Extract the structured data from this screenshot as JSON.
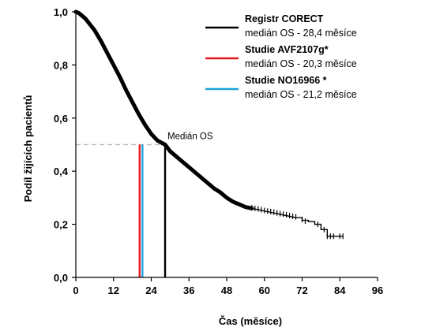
{
  "chart_data": {
    "type": "line",
    "title": "",
    "xlabel": "Čas (měsíce)",
    "ylabel": "Podíl žijících pacientů",
    "xlim": [
      0,
      96
    ],
    "ylim": [
      0,
      1
    ],
    "x_ticks": [
      0,
      12,
      24,
      36,
      48,
      60,
      72,
      84,
      96
    ],
    "y_ticks": [
      0,
      0.2,
      0.4,
      0.6,
      0.8,
      1.0
    ],
    "x_tick_labels": [
      "0",
      "12",
      "24",
      "36",
      "48",
      "60",
      "72",
      "84",
      "96"
    ],
    "y_tick_labels": [
      "0,0",
      "0,2",
      "0,4",
      "0,6",
      "0,8",
      "1,0"
    ],
    "grid": false,
    "legend_position": "top-right",
    "series": [
      {
        "name": "Registr CORECT",
        "subtitle": "medián OS - 28,4 měsíce",
        "color": "#000000",
        "x": [
          0,
          1,
          2,
          3,
          4,
          6,
          8,
          10,
          12,
          14,
          16,
          18,
          20,
          22,
          24,
          26,
          28.4,
          30,
          32,
          34,
          36,
          38,
          40,
          42,
          44,
          46,
          48,
          50,
          52,
          54,
          56,
          58,
          60,
          62,
          64,
          66,
          68,
          70,
          72,
          74,
          76,
          78,
          80,
          82,
          84,
          85
        ],
        "y": [
          1.0,
          0.995,
          0.985,
          0.975,
          0.96,
          0.93,
          0.89,
          0.845,
          0.8,
          0.755,
          0.705,
          0.66,
          0.615,
          0.575,
          0.54,
          0.515,
          0.5,
          0.475,
          0.455,
          0.435,
          0.415,
          0.395,
          0.375,
          0.355,
          0.335,
          0.32,
          0.3,
          0.285,
          0.275,
          0.265,
          0.26,
          0.255,
          0.25,
          0.245,
          0.24,
          0.235,
          0.23,
          0.225,
          0.215,
          0.21,
          0.2,
          0.18,
          0.155,
          0.155,
          0.155,
          0.155
        ]
      },
      {
        "name": "Studie AVF2107g*",
        "subtitle": "medián OS - 20,3 měsíce",
        "color": "#e8141c",
        "median_x": 20.3
      },
      {
        "name": "Studie NO16966 *",
        "subtitle": "medián OS - 21,2 měsíce",
        "color": "#1aa3dc",
        "median_x": 21.2
      }
    ],
    "median_marker": {
      "label": "Medián OS",
      "y": 0.5,
      "x": 28.4,
      "color": "#000000",
      "guide_color": "#bfbfbf"
    },
    "censor_marks": {
      "x": [
        56,
        57,
        58,
        59,
        60,
        61,
        62,
        63,
        64,
        65,
        66,
        67,
        68,
        69,
        70,
        72,
        73,
        77,
        79,
        80,
        81,
        82,
        84,
        85
      ],
      "y": [
        0.262,
        0.26,
        0.258,
        0.255,
        0.252,
        0.25,
        0.248,
        0.246,
        0.243,
        0.24,
        0.238,
        0.236,
        0.233,
        0.23,
        0.228,
        0.218,
        0.212,
        0.2,
        0.18,
        0.155,
        0.155,
        0.155,
        0.155,
        0.155
      ]
    }
  }
}
